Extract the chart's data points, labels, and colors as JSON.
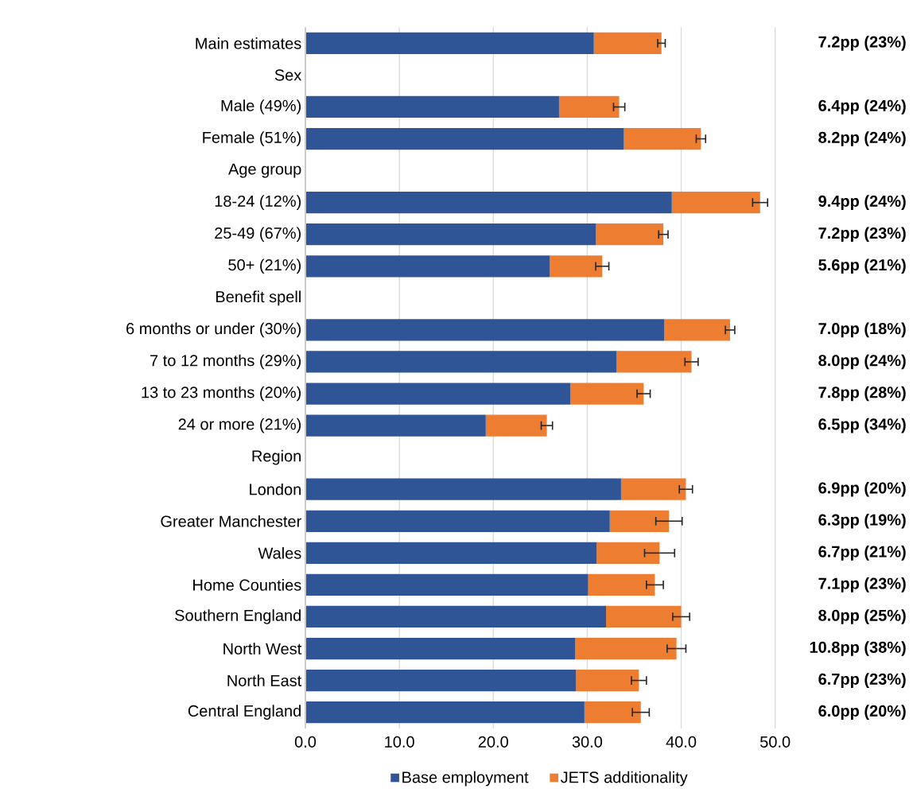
{
  "chart_data": {
    "type": "bar",
    "orientation": "horizontal",
    "stacked": true,
    "grid": "x",
    "legend": "bottom",
    "categories": [
      "Main estimates",
      "Sex",
      "Male (49%)",
      "Female (51%)",
      "Age group",
      "18-24 (12%)",
      "25-49 (67%)",
      "50+ (21%)",
      "Benefit spell",
      "6 months or under (30%)",
      "7 to 12 months (29%)",
      "13 to 23 months (20%)",
      "24 or more (21%)",
      "Region",
      "London",
      "Greater Manchester",
      "Wales",
      "Home Counties",
      "Southern England",
      "North West",
      "North East",
      "Central England"
    ],
    "xlim": [
      0,
      50
    ],
    "xticks": [
      {
        "value": 0,
        "label": "0.0"
      },
      {
        "value": 10,
        "label": "10.0"
      },
      {
        "value": 20,
        "label": "20.0"
      },
      {
        "value": 30,
        "label": "30.0"
      },
      {
        "value": 40,
        "label": "40.0"
      },
      {
        "value": 50,
        "label": "50.0"
      }
    ],
    "series": [
      {
        "name": "Base employment",
        "color": "#2f5597",
        "values": [
          30.7,
          null,
          27.0,
          33.9,
          null,
          39.0,
          30.9,
          26.0,
          null,
          38.2,
          33.1,
          28.2,
          19.2,
          null,
          33.6,
          32.4,
          31.0,
          30.1,
          32.0,
          28.7,
          28.8,
          29.7
        ]
      },
      {
        "name": "JETS additionality",
        "color": "#ed7d31",
        "values": [
          7.2,
          null,
          6.4,
          8.2,
          null,
          9.4,
          7.2,
          5.6,
          null,
          7.0,
          8.0,
          7.8,
          6.5,
          null,
          6.9,
          6.3,
          6.7,
          7.1,
          8.0,
          10.8,
          6.7,
          6.0
        ],
        "errors": [
          0.4,
          null,
          0.6,
          0.5,
          null,
          0.8,
          0.5,
          0.7,
          null,
          0.5,
          0.7,
          0.7,
          0.6,
          null,
          0.7,
          1.4,
          1.6,
          0.9,
          0.9,
          1.0,
          0.8,
          0.9
        ],
        "value_labels": [
          "7.2pp (23%)",
          null,
          "6.4pp (24%)",
          "8.2pp (24%)",
          null,
          "9.4pp (24%)",
          "7.2pp (23%)",
          "5.6pp (21%)",
          null,
          "7.0pp (18%)",
          "8.0pp (24%)",
          "7.8pp (28%)",
          "6.5pp (34%)",
          null,
          "6.9pp (20%)",
          "6.3pp (19%)",
          "6.7pp (21%)",
          "7.1pp (23%)",
          "8.0pp (25%)",
          "10.8pp (38%)",
          "6.7pp (23%)",
          "6.0pp (20%)"
        ]
      }
    ]
  }
}
